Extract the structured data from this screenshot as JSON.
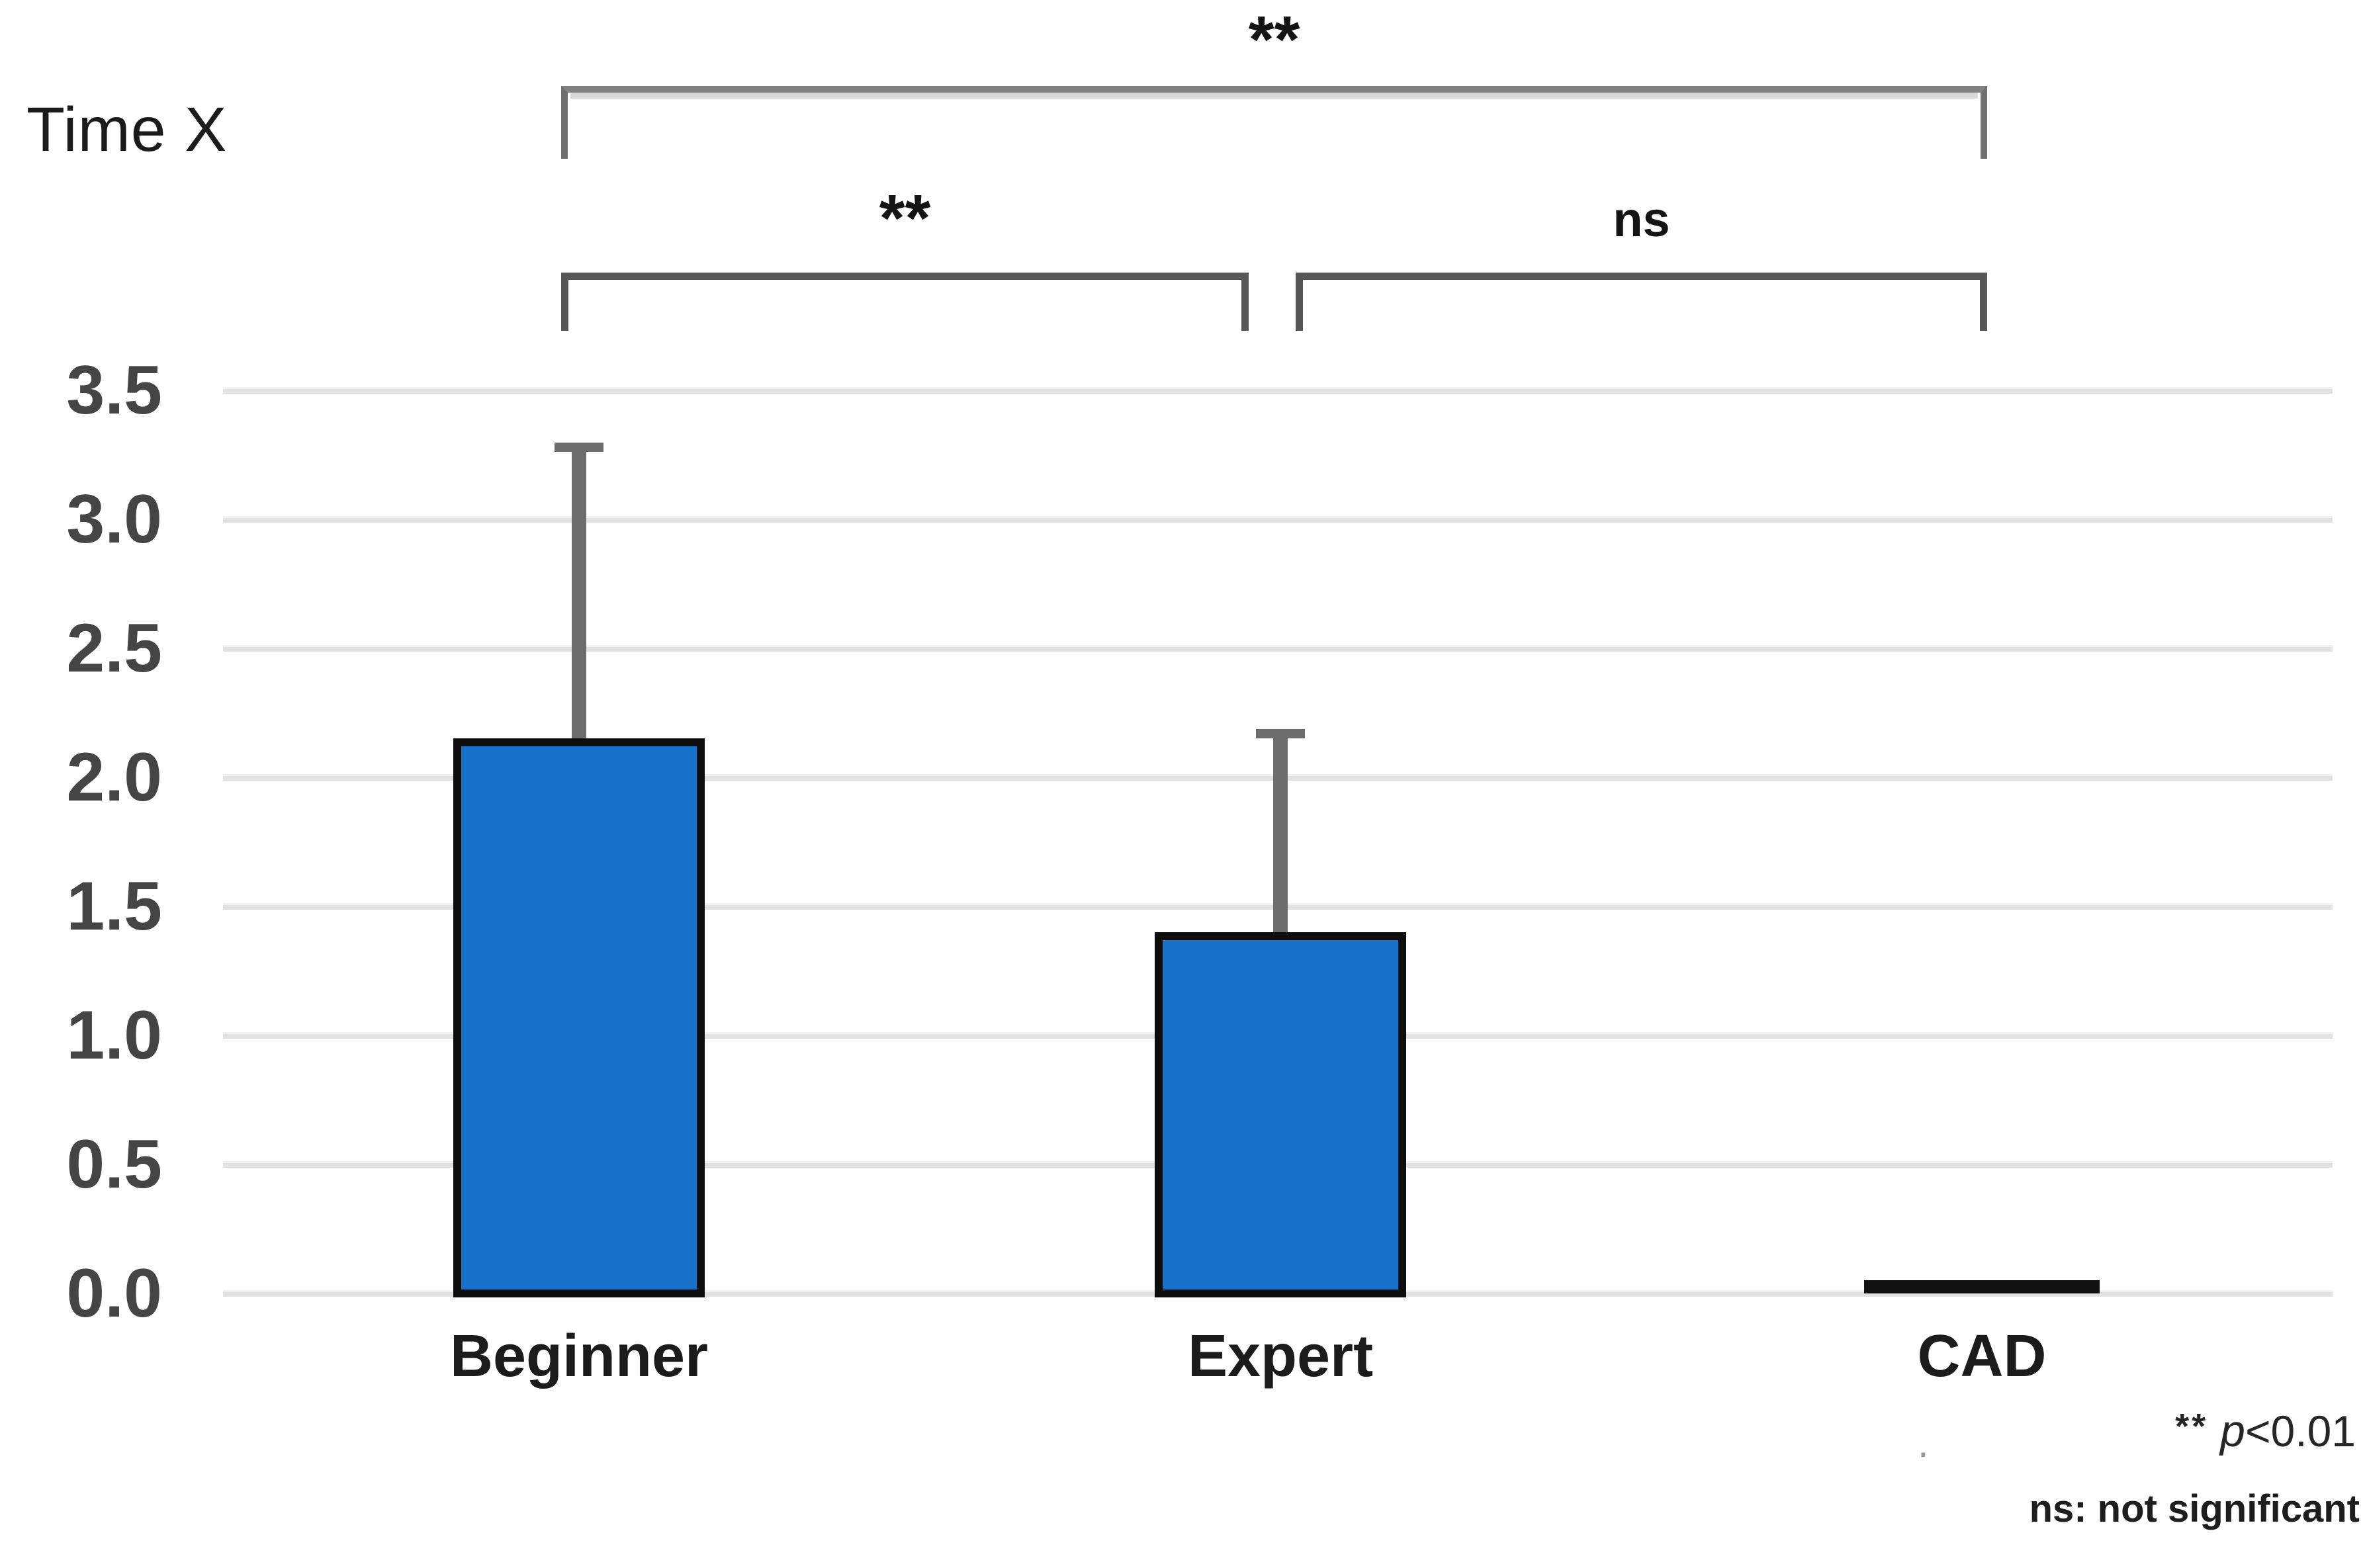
{
  "title": "Time X",
  "chart_data": {
    "type": "bar",
    "title": "Time X",
    "categories": [
      "Beginner",
      "Expert",
      "CAD"
    ],
    "values": [
      2.15,
      1.4,
      0.03
    ],
    "error_top": [
      3.28,
      2.17,
      null
    ],
    "yticks": [
      3.5,
      3.0,
      2.5,
      2.0,
      1.5,
      1.0,
      0.5,
      0.0
    ],
    "ytick_labels": [
      "3.5",
      "3.0",
      "2.5",
      "2.0",
      "1.5",
      "1.0",
      "0.5",
      "0.0"
    ],
    "ylim": [
      0,
      3.5
    ],
    "grid": "horizontal",
    "legend_position": "none",
    "bar_color": "#1773CA",
    "bar_border_color": "#0d0d0d",
    "cad_bar_color": "#111111",
    "error_bar_color": "#6d6d6d",
    "gridline_color": "#e2e2e2",
    "significance": [
      {
        "from": "Beginner",
        "to": "CAD",
        "label": "**",
        "level": "top"
      },
      {
        "from": "Beginner",
        "to": "Expert",
        "label": "**",
        "level": "mid"
      },
      {
        "from": "Expert",
        "to": "CAD",
        "label": "ns",
        "level": "mid"
      }
    ]
  },
  "legend": {
    "sig_stars": "**",
    "sig_p": "p",
    "sig_rest": "<0.01",
    "stray_dot": ".",
    "ns_note": "ns: not significant"
  }
}
